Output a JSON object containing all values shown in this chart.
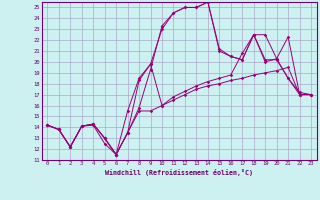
{
  "xlabel": "Windchill (Refroidissement éolien,°C)",
  "background_color": "#cdf0f0",
  "grid_color": "#aaaacc",
  "line_color": "#990077",
  "xlim": [
    -0.5,
    23.5
  ],
  "ylim": [
    11,
    25.5
  ],
  "xticks": [
    0,
    1,
    2,
    3,
    4,
    5,
    6,
    7,
    8,
    9,
    10,
    11,
    12,
    13,
    14,
    15,
    16,
    17,
    18,
    19,
    20,
    21,
    22,
    23
  ],
  "yticks": [
    11,
    12,
    13,
    14,
    15,
    16,
    17,
    18,
    19,
    20,
    21,
    22,
    23,
    24,
    25
  ],
  "series": [
    {
      "x": [
        0,
        1,
        2,
        3,
        4,
        5,
        6,
        7,
        8,
        9,
        10,
        11,
        12,
        13,
        14,
        15,
        16,
        17,
        18,
        19,
        20,
        21,
        22,
        23
      ],
      "y": [
        14.2,
        13.8,
        12.2,
        14.1,
        14.2,
        12.5,
        11.5,
        13.5,
        15.5,
        15.5,
        16.0,
        16.5,
        17.0,
        17.5,
        17.8,
        18.0,
        18.3,
        18.5,
        18.8,
        19.0,
        19.2,
        19.5,
        17.0,
        17.0
      ]
    },
    {
      "x": [
        0,
        1,
        2,
        3,
        4,
        5,
        6,
        7,
        8,
        9,
        10,
        11,
        12,
        13,
        14,
        15,
        16,
        17,
        18,
        19,
        20,
        21,
        22,
        23
      ],
      "y": [
        14.2,
        13.8,
        12.2,
        14.1,
        14.3,
        13.0,
        11.5,
        13.5,
        15.8,
        19.3,
        23.3,
        24.5,
        25.0,
        25.0,
        25.5,
        21.2,
        20.5,
        20.2,
        22.5,
        20.2,
        20.2,
        18.5,
        17.0,
        17.0
      ]
    },
    {
      "x": [
        0,
        1,
        2,
        3,
        4,
        5,
        6,
        7,
        8,
        9,
        10,
        11,
        12,
        13,
        14,
        15,
        16,
        17,
        18,
        19,
        20,
        21,
        22,
        23
      ],
      "y": [
        14.2,
        13.8,
        12.2,
        14.1,
        14.3,
        13.0,
        11.5,
        13.5,
        18.3,
        19.8,
        16.0,
        16.8,
        17.3,
        17.8,
        18.2,
        18.5,
        18.8,
        20.8,
        22.5,
        22.5,
        20.3,
        22.3,
        17.0,
        17.0
      ]
    },
    {
      "x": [
        0,
        1,
        2,
        3,
        4,
        5,
        6,
        7,
        8,
        9,
        10,
        11,
        12,
        13,
        14,
        15,
        16,
        17,
        18,
        19,
        20,
        21,
        22,
        23
      ],
      "y": [
        14.2,
        13.8,
        12.2,
        14.1,
        14.3,
        13.0,
        11.5,
        15.5,
        18.5,
        19.8,
        23.0,
        24.5,
        25.0,
        25.0,
        25.5,
        21.0,
        20.5,
        20.2,
        22.5,
        20.0,
        20.3,
        18.5,
        17.2,
        17.0
      ]
    }
  ]
}
